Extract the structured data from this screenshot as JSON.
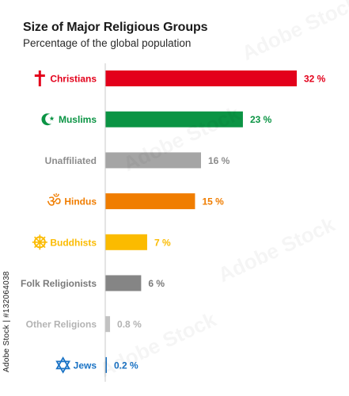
{
  "header": {
    "title": "Size of Major Religious Groups",
    "subtitle": "Percentage of the global population"
  },
  "side_id": "Adobe Stock | #132064038",
  "chart_data": {
    "type": "bar",
    "orientation": "horizontal",
    "title": "Size of Major Religious Groups",
    "subtitle": "Percentage of the global population",
    "categories": [
      "Christians",
      "Muslims",
      "Unaffiliated",
      "Hindus",
      "Buddhists",
      "Folk Religionists",
      "Other Religions",
      "Jews"
    ],
    "values": [
      32,
      23,
      16,
      15,
      7,
      6,
      0.8,
      0.2
    ],
    "value_labels": [
      "32 %",
      "23 %",
      "16 %",
      "15 %",
      "7 %",
      "6 %",
      "0.8 %",
      "0.2 %"
    ],
    "icons": [
      "latin-cross-icon",
      "crescent-star-icon",
      "",
      "om-icon",
      "dharma-wheel-icon",
      "",
      "",
      "star-of-david-icon"
    ],
    "colors": [
      "#e3001b",
      "#0b9444",
      "#a5a5a5",
      "#f07d00",
      "#fbbb00",
      "#858585",
      "#c2c2c2",
      "#1a73c5"
    ],
    "label_colors": [
      "#e3001b",
      "#0b9444",
      "#8c8c8c",
      "#f07d00",
      "#fbbb00",
      "#7a7a7a",
      "#b3b3b3",
      "#1a73c5"
    ],
    "xlim": [
      0,
      34
    ],
    "grid": false,
    "legend": "none"
  }
}
